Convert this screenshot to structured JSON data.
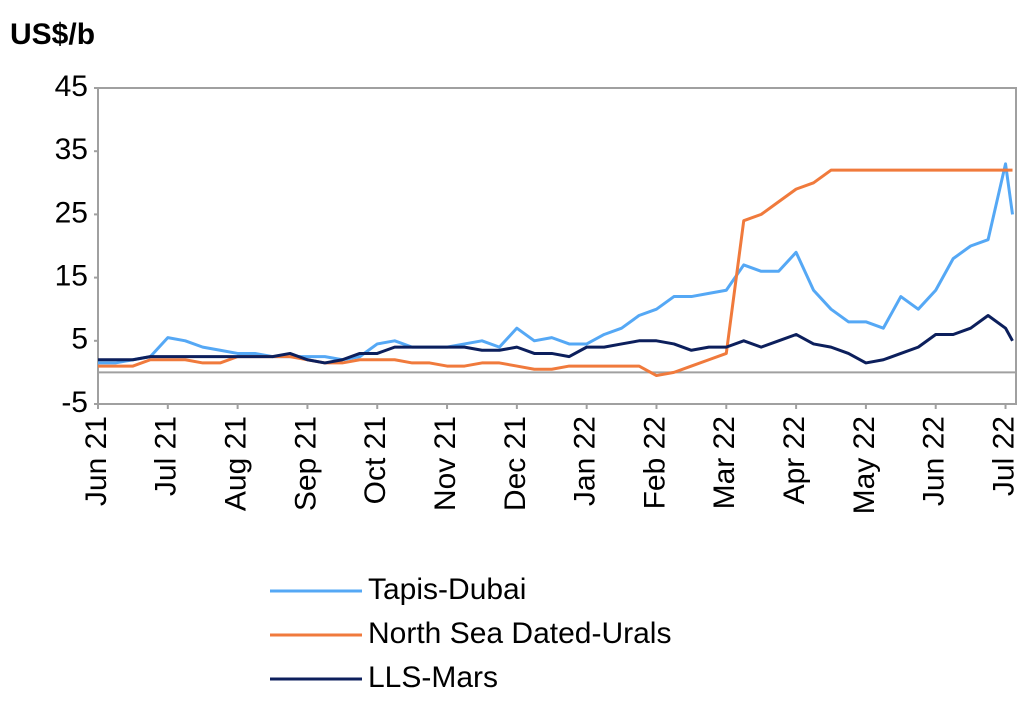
{
  "chart_data": {
    "type": "line",
    "y_axis_label": "US$/b",
    "x": [
      0,
      0.25,
      0.5,
      0.75,
      1,
      1.25,
      1.5,
      1.75,
      2,
      2.25,
      2.5,
      2.75,
      3,
      3.25,
      3.5,
      3.75,
      4,
      4.25,
      4.5,
      4.75,
      5,
      5.25,
      5.5,
      5.75,
      6,
      6.25,
      6.5,
      6.75,
      7,
      7.25,
      7.5,
      7.75,
      8,
      8.25,
      8.5,
      8.75,
      9,
      9.25,
      9.5,
      9.75,
      10,
      10.25,
      10.5,
      10.75,
      11,
      11.25,
      11.5,
      11.75,
      12,
      12.25,
      12.5,
      12.75,
      13,
      13.1
    ],
    "series": [
      {
        "name": "Tapis-Dubai",
        "color": "#55a8f5",
        "values": [
          1.5,
          1.5,
          2,
          2.5,
          5.5,
          5,
          4,
          3.5,
          3,
          3,
          2.5,
          2.5,
          2.5,
          2.5,
          2,
          2.5,
          4.5,
          5,
          4,
          4,
          4,
          4.5,
          5,
          4,
          7,
          5,
          5.5,
          4.5,
          4.5,
          6,
          7,
          9,
          10,
          12,
          12,
          12.5,
          13,
          17,
          16,
          16,
          19,
          13,
          10,
          8,
          8,
          7,
          12,
          10,
          13,
          18,
          20,
          21,
          33,
          25
        ]
      },
      {
        "name": "North Sea Dated-Urals",
        "color": "#f07a3c",
        "values": [
          1,
          1,
          1,
          2,
          2,
          2,
          1.5,
          1.5,
          2.5,
          2.5,
          2.5,
          2.5,
          2,
          1.5,
          1.5,
          2,
          2,
          2,
          1.5,
          1.5,
          1,
          1,
          1.5,
          1.5,
          1,
          0.5,
          0.5,
          1,
          1,
          1,
          1,
          1,
          -0.5,
          0,
          1,
          2,
          3,
          24,
          25,
          27,
          29,
          30,
          32,
          32,
          32,
          32,
          32,
          32,
          32,
          32,
          32,
          32,
          32,
          32
        ]
      },
      {
        "name": "LLS-Mars",
        "color": "#0c1f5c",
        "values": [
          2,
          2,
          2,
          2.5,
          2.5,
          2.5,
          2.5,
          2.5,
          2.5,
          2.5,
          2.5,
          3,
          2,
          1.5,
          2,
          3,
          3,
          4,
          4,
          4,
          4,
          4,
          3.5,
          3.5,
          4,
          3,
          3,
          2.5,
          4,
          4,
          4.5,
          5,
          5,
          4.5,
          3.5,
          4,
          4,
          5,
          4,
          5,
          6,
          4.5,
          4,
          3,
          1.5,
          2,
          3,
          4,
          6,
          6,
          7,
          9,
          7,
          5
        ]
      }
    ],
    "xlim": [
      0,
      13.15
    ],
    "xticks": [
      {
        "value": 0,
        "label": "Jun 21"
      },
      {
        "value": 1,
        "label": "Jul 21"
      },
      {
        "value": 2,
        "label": "Aug 21"
      },
      {
        "value": 3,
        "label": "Sep 21"
      },
      {
        "value": 4,
        "label": "Oct 21"
      },
      {
        "value": 5,
        "label": "Nov 21"
      },
      {
        "value": 6,
        "label": "Dec 21"
      },
      {
        "value": 7,
        "label": "Jan 22"
      },
      {
        "value": 8,
        "label": "Feb 22"
      },
      {
        "value": 9,
        "label": "Mar 22"
      },
      {
        "value": 10,
        "label": "Apr 22"
      },
      {
        "value": 11,
        "label": "May 22"
      },
      {
        "value": 12,
        "label": "Jun 22"
      },
      {
        "value": 13,
        "label": "Jul 22"
      }
    ],
    "ylim": [
      -5,
      45
    ],
    "yticks": [
      -5,
      5,
      15,
      25,
      35,
      45
    ]
  }
}
